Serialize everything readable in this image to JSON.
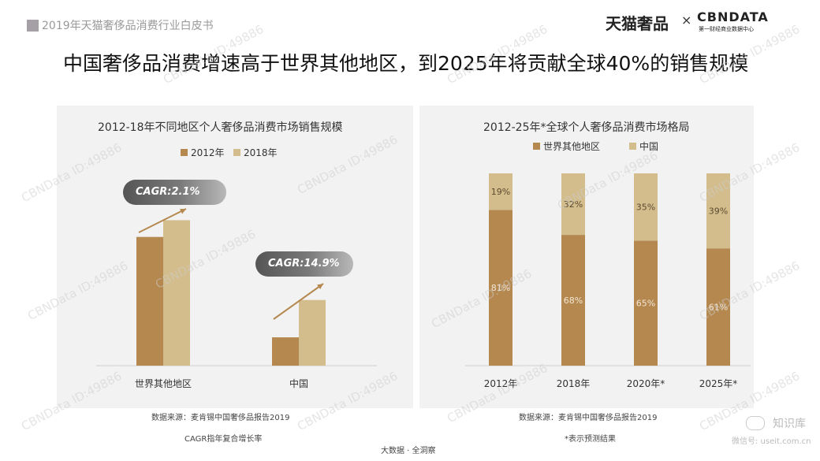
{
  "header": {
    "report_title": "2019年天猫奢侈品消费行业白皮书",
    "logo_tmall": "天猫奢品",
    "logo_x": "×",
    "logo_cbn": "CBNDATA",
    "logo_cbn_sub": "第一财经商业数据中心"
  },
  "main_title": "中国奢侈品消费增速高于世界其他地区，到2025年将贡献全球40%的销售规模",
  "watermark": "CBNData ID:49886",
  "footer": {
    "text": "大数据 · 全洞察",
    "wechat_name": "知识库",
    "wechat_id": "微信号: useit.com.cn"
  },
  "chart_data": [
    {
      "type": "bar",
      "title": "2012-18年不同地区个人奢侈品消费市场销售规模",
      "categories": [
        "世界其他地区",
        "中国"
      ],
      "series": [
        {
          "name": "2012年",
          "color": "#b5884f",
          "values": [
            100,
            22
          ]
        },
        {
          "name": "2018年",
          "color": "#d4bd8c",
          "values": [
            113,
            51
          ]
        }
      ],
      "ylim": [
        0,
        150
      ],
      "annotations": [
        {
          "label": "CAGR:2.1%",
          "category": "世界其他地区"
        },
        {
          "label": "CAGR:14.9%",
          "category": "中国"
        }
      ],
      "source": "数据来源：麦肯锡中国奢侈品报告2019",
      "note": "CAGR指年复合增长率"
    },
    {
      "type": "bar",
      "stacked": true,
      "title": "2012-25年*全球个人奢侈品消费市场格局",
      "categories": [
        "2012年",
        "2018年",
        "2020年*",
        "2025年*"
      ],
      "series": [
        {
          "name": "世界其他地区",
          "color": "#b5884f",
          "values": [
            81,
            68,
            65,
            61
          ]
        },
        {
          "name": "中国",
          "color": "#d4bd8c",
          "values": [
            19,
            32,
            35,
            39
          ]
        }
      ],
      "ylim": [
        0,
        100
      ],
      "source": "数据来源：麦肯锡中国奢侈品报告2019",
      "note": "*表示预测结果"
    }
  ]
}
